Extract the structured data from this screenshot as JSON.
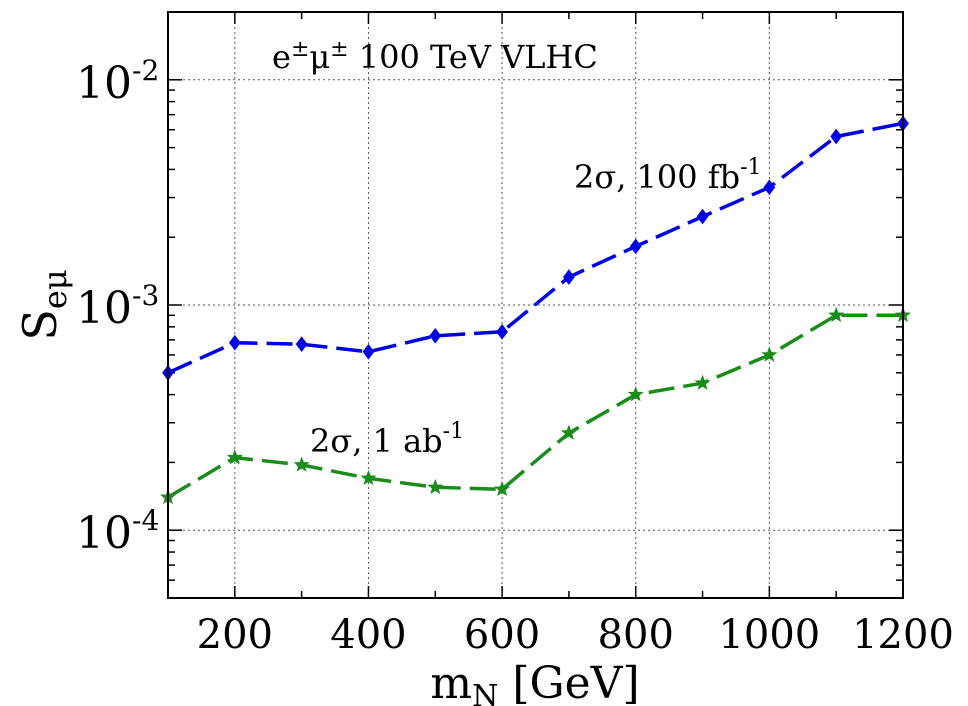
{
  "chart_data": {
    "type": "line",
    "title": "",
    "xlabel": "m_N [GeV]",
    "ylabel": "S_eμ",
    "x_scale": "linear",
    "y_scale": "log",
    "xlim": [
      100,
      1200
    ],
    "ylim": [
      5e-05,
      0.02
    ],
    "x_ticks": [
      200,
      400,
      600,
      800,
      1000,
      1200
    ],
    "x_tick_labels": [
      "200",
      "400",
      "600",
      "800",
      "1000",
      "1200"
    ],
    "y_ticks": [
      0.0001,
      0.001,
      0.01
    ],
    "y_tick_labels": [
      {
        "base": "10",
        "exp": "-4"
      },
      {
        "base": "10",
        "exp": "-3"
      },
      {
        "base": "10",
        "exp": "-2"
      }
    ],
    "grid": true,
    "legend": "none",
    "annotations": {
      "title_text": {
        "main": "e",
        "sup1": "±",
        "mid": "μ",
        "sup2": "±",
        "rest": " 100 TeV VLHC"
      },
      "series_labels": [
        {
          "text": "2σ, 100 fb",
          "sup": "-1"
        },
        {
          "text": "2σ, 1 ab",
          "sup": "-1"
        }
      ]
    },
    "series": [
      {
        "marker": "diamond",
        "color": "#0000e6",
        "x": [
          100,
          200,
          300,
          400,
          500,
          600,
          700,
          800,
          900,
          1000,
          1100,
          1200
        ],
        "values": [
          0.0005,
          0.00068,
          0.00067,
          0.00062,
          0.00073,
          0.00076,
          0.00133,
          0.00182,
          0.00247,
          0.00333,
          0.0056,
          0.0064
        ]
      },
      {
        "marker": "star",
        "color": "#1a8c1a",
        "x": [
          100,
          200,
          300,
          400,
          500,
          600,
          700,
          800,
          900,
          1000,
          1100,
          1200
        ],
        "values": [
          0.00014,
          0.00021,
          0.000195,
          0.00017,
          0.000155,
          0.000152,
          0.00027,
          0.0004,
          0.00045,
          0.0006,
          0.0009,
          0.0009
        ]
      }
    ]
  }
}
